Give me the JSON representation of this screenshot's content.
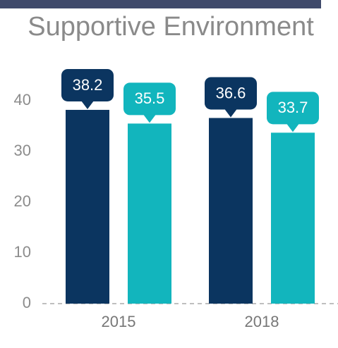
{
  "chart_data": {
    "type": "bar",
    "title": "Supportive Environment",
    "categories": [
      "2015",
      "2018"
    ],
    "series": [
      {
        "color": "#0b3560",
        "values": [
          38.2,
          36.6
        ]
      },
      {
        "color": "#12b5bd",
        "values": [
          35.5,
          33.7
        ]
      }
    ],
    "ylim": [
      0,
      40
    ],
    "yticks": [
      0,
      10,
      20,
      30,
      40
    ],
    "grid": false
  }
}
